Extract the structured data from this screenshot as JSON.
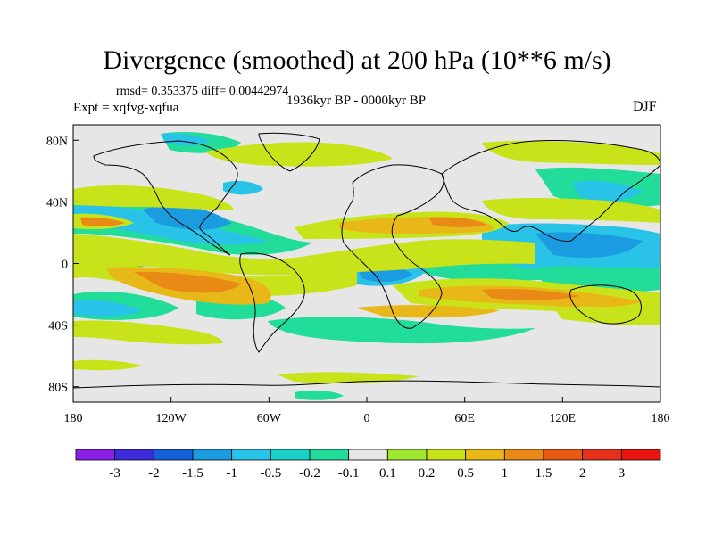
{
  "title": "Divergence (smoothed) at 200 hPa (10**6 m/s)",
  "stats_text": "rmsd= 0.353375 diff= 0.00442974",
  "experiment_label": "Expt = xqfvg-xqfua",
  "period_label": "1936kyr BP - 0000kyr BP",
  "season_label": "DJF",
  "map": {
    "projection": "cylindrical equidistant",
    "lon_range": [
      -180,
      180
    ],
    "lat_range": [
      -90,
      90
    ],
    "lon_ticks": [
      {
        "value": -180,
        "label": "180"
      },
      {
        "value": -120,
        "label": "120W"
      },
      {
        "value": -60,
        "label": "60W"
      },
      {
        "value": 0,
        "label": "0"
      },
      {
        "value": 60,
        "label": "60E"
      },
      {
        "value": 120,
        "label": "120E"
      },
      {
        "value": 180,
        "label": "180"
      }
    ],
    "lat_ticks": [
      {
        "value": 80,
        "label": "80N"
      },
      {
        "value": 40,
        "label": "40N"
      },
      {
        "value": 0,
        "label": "0"
      },
      {
        "value": -40,
        "label": "40S"
      },
      {
        "value": -80,
        "label": "80S"
      }
    ],
    "background_color": "#e6e6e6"
  },
  "colorbar": {
    "labels": [
      "-3",
      "-2",
      "-1.5",
      "-1",
      "-0.5",
      "-0.2",
      "-0.1",
      "0.1",
      "0.2",
      "0.5",
      "1",
      "1.5",
      "2",
      "3"
    ],
    "colors": [
      "#8a1ee6",
      "#3c2adb",
      "#1560d8",
      "#1c9ce0",
      "#29c3e8",
      "#18d2c8",
      "#22dd9a",
      "#e6e6e6",
      "#9ee830",
      "#c9e31a",
      "#e8b818",
      "#ea8a16",
      "#e85a14",
      "#e6321a",
      "#e8140e"
    ]
  }
}
